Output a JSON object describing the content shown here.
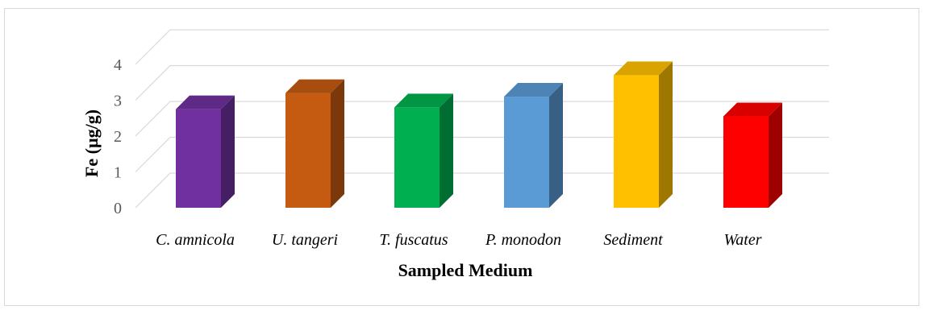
{
  "chart_data": {
    "type": "bar",
    "style": "3d-column",
    "categories": [
      "C. amnicola",
      "U. tangeri",
      "T. fuscatus",
      "P. monodon",
      "Sediment",
      "Water"
    ],
    "values": [
      2.75,
      3.2,
      2.8,
      3.1,
      3.7,
      2.55
    ],
    "colors": [
      "#7030a0",
      "#c55a11",
      "#00b050",
      "#5b9bd5",
      "#ffc000",
      "#ff0000"
    ],
    "xlabel": "Sampled Medium",
    "ylabel": "Fe (µg/g)",
    "ylim": [
      0,
      4
    ],
    "yticks": [
      "0",
      "1",
      "2",
      "3",
      "4"
    ],
    "grid": true,
    "legend": "none"
  }
}
